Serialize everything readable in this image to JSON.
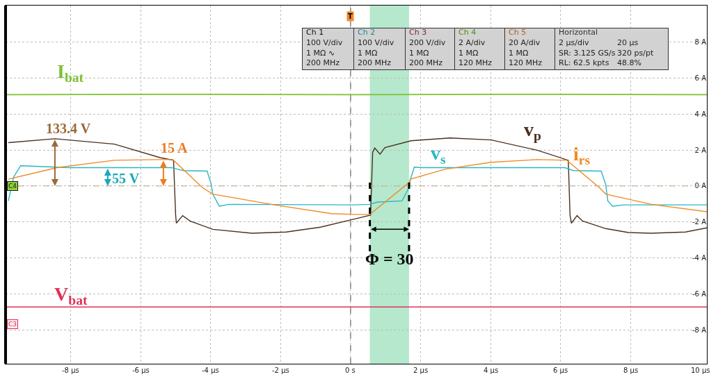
{
  "chart_data": {
    "type": "line",
    "legend": false,
    "grid": true,
    "marker": "none",
    "xlim": [
      -9.86,
      10.18
    ],
    "ylim": [
      -9.89,
      10.04
    ],
    "xticks": [
      {
        "value": -8,
        "label": "-8 µs"
      },
      {
        "value": -6,
        "label": "-6 µs"
      },
      {
        "value": -4,
        "label": "-4 µs"
      },
      {
        "value": -2,
        "label": "-2 µs"
      },
      {
        "value": 0,
        "label": "0 s"
      },
      {
        "value": 2,
        "label": "2 µs"
      },
      {
        "value": 4,
        "label": "4 µs"
      },
      {
        "value": 6,
        "label": "6 µs"
      },
      {
        "value": 8,
        "label": "8 µs"
      },
      {
        "value": 10,
        "label": "10 µs"
      }
    ],
    "yticks": [
      {
        "value": -8,
        "label": "-8 A"
      },
      {
        "value": -6,
        "label": "-6 A"
      },
      {
        "value": -4,
        "label": "-4 A"
      },
      {
        "value": -2,
        "label": "-2 A"
      },
      {
        "value": 0,
        "label": "0 A"
      },
      {
        "value": 2,
        "label": "2 A"
      },
      {
        "value": 4,
        "label": "4 A"
      },
      {
        "value": 6,
        "label": "6 A"
      },
      {
        "value": 8,
        "label": "8 A"
      }
    ],
    "series": [
      {
        "name": "I$_{bat}$",
        "color": "#7cc230",
        "x": [
          -9.86,
          -5,
          0,
          5,
          10.18
        ],
        "values": [
          5.08,
          5.1,
          5.08,
          5.1,
          5.08
        ]
      },
      {
        "name": "V$_{bat}$",
        "color": "#e0305a",
        "x": [
          -9.86,
          -5,
          0,
          5,
          10.18
        ],
        "values": [
          -6.73,
          -6.73,
          -6.73,
          -6.73,
          -6.73
        ]
      },
      {
        "name": "v$_{p}$",
        "color": "#4a3020",
        "x": [
          -9.78,
          -8.45,
          -6.75,
          -5.45,
          -5.06,
          -5.0,
          -4.98,
          -4.8,
          -4.59,
          -3.94,
          -2.82,
          -1.84,
          -0.86,
          0.1,
          0.57,
          0.63,
          0.69,
          0.84,
          0.98,
          1.73,
          2.84,
          4.02,
          5.33,
          6.22,
          6.27,
          6.31,
          6.47,
          6.63,
          7.29,
          7.94,
          8.59,
          9.57,
          10.18
        ],
        "values": [
          2.41,
          2.63,
          2.33,
          1.58,
          1.43,
          -1.62,
          -2.07,
          -1.65,
          -1.95,
          -2.41,
          -2.63,
          -2.56,
          -2.29,
          -1.84,
          -1.62,
          1.88,
          2.11,
          1.77,
          2.14,
          2.52,
          2.67,
          2.56,
          1.99,
          1.43,
          -1.62,
          -2.07,
          -1.65,
          -1.95,
          -2.37,
          -2.59,
          -2.63,
          -2.56,
          -2.33
        ]
      },
      {
        "name": "v$_{s}$",
        "color": "#29b6c6",
        "x": [
          -9.78,
          -9.63,
          -9.43,
          -8.06,
          -5.12,
          -4.78,
          -4.1,
          -3.98,
          -3.94,
          -3.75,
          -3.49,
          0.1,
          0.55,
          0.75,
          1.47,
          1.67,
          1.71,
          1.82,
          2.06,
          6.12,
          6.37,
          7.16,
          7.29,
          7.35,
          7.49,
          7.8,
          10.18
        ],
        "values": [
          -0.83,
          0.49,
          1.13,
          1.02,
          1.02,
          0.86,
          0.83,
          0.08,
          -0.45,
          -1.13,
          -1.02,
          -1.05,
          -1.02,
          -0.9,
          -0.83,
          -0.08,
          0.38,
          1.05,
          1.02,
          1.02,
          0.86,
          0.83,
          0.08,
          -0.83,
          -1.13,
          -1.05,
          -1.05
        ]
      },
      {
        "name": "i$_{rs}$",
        "color": "#f08a24",
        "x": [
          -9.78,
          -8.39,
          -6.75,
          -5.45,
          -5.08,
          -4.24,
          -3.94,
          -2.18,
          -0.55,
          0.1,
          0.55,
          1.67,
          1.71,
          2.71,
          4.02,
          5.33,
          6.18,
          7.1,
          7.29,
          8.59,
          10.18
        ],
        "values": [
          0.38,
          1.02,
          1.43,
          1.47,
          1.47,
          -0.08,
          -0.45,
          -1.05,
          -1.54,
          -1.58,
          -1.58,
          0.19,
          0.38,
          0.94,
          1.32,
          1.47,
          1.43,
          -0.08,
          -0.45,
          -1.02,
          -1.43
        ]
      }
    ],
    "ref_lines": [
      {
        "axis": "y",
        "value": 0,
        "color": "#c8b89a",
        "line_style": "dashed"
      },
      {
        "axis": "x",
        "value": 0,
        "color": "#777777",
        "line_style": "dashed"
      }
    ],
    "bands": [
      {
        "axis": "x",
        "from": 0.55,
        "to": 1.67,
        "color": "#b5e8cc"
      }
    ],
    "annotations": [
      {
        "text": "133.4 V",
        "x": -8.45,
        "y": 2.63
      },
      {
        "text": "55 V",
        "x": -6.94,
        "y": 1.02
      },
      {
        "text": "15 A",
        "x": -5.35,
        "y": 1.47
      },
      {
        "text": "Φ = 30",
        "x": 1.67,
        "y": 0.19
      },
      "Ch 1",
      "100 V/div",
      "1 MΩ ∿",
      "200 MHz",
      "Ch 2",
      "100 V/div",
      "1 MΩ",
      "200 MHz",
      "Ch 3",
      "200 V/div",
      "1 MΩ",
      "200 MHz",
      "Ch 4",
      "2 A/div",
      "1 MΩ",
      "120 MHz",
      "Ch 5",
      "20 A/div",
      "1 MΩ",
      "120 MHz",
      "Horizontal",
      "2 µs/div",
      "20 µs",
      "SR: 3.125 GS/s",
      "320 ps/pt",
      "RL: 62.5 kpts",
      "48.8%",
      "C4",
      "C3",
      "T"
    ]
  }
}
